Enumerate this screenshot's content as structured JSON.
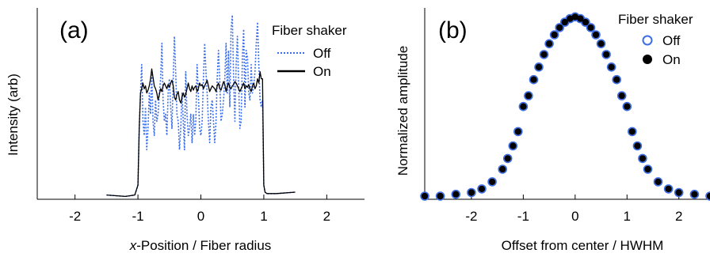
{
  "colors": {
    "off": "#3b6ee8",
    "on": "#000000",
    "axis": "#000000",
    "background": "#ffffff"
  },
  "chart_data": [
    {
      "type": "line",
      "panel_label": "(a)",
      "xlabel_prefix": "x",
      "xlabel_suffix": "-Position / Fiber radius",
      "ylabel": "Intensity (arb)",
      "xlim": [
        -2.6,
        2.6
      ],
      "ylim": [
        0,
        1.35
      ],
      "grid": false,
      "xticks": [
        -2,
        -1,
        0,
        1,
        2
      ],
      "xtick_labels": [
        "-2",
        "-1",
        "0",
        "1",
        "2"
      ],
      "legend": {
        "title": "Fiber shaker",
        "placement": "top-right",
        "entries": [
          "Off",
          "On"
        ]
      },
      "series": [
        {
          "name": "Off",
          "style": "dotted",
          "x": [
            -1.5,
            -1.2,
            -1.05,
            -1.0,
            -0.98,
            -0.96,
            -0.94,
            -0.92,
            -0.9,
            -0.88,
            -0.86,
            -0.84,
            -0.82,
            -0.8,
            -0.78,
            -0.76,
            -0.74,
            -0.72,
            -0.7,
            -0.68,
            -0.66,
            -0.64,
            -0.62,
            -0.6,
            -0.58,
            -0.56,
            -0.54,
            -0.52,
            -0.5,
            -0.48,
            -0.46,
            -0.44,
            -0.42,
            -0.4,
            -0.38,
            -0.36,
            -0.34,
            -0.32,
            -0.3,
            -0.28,
            -0.26,
            -0.24,
            -0.22,
            -0.2,
            -0.18,
            -0.16,
            -0.14,
            -0.12,
            -0.1,
            -0.08,
            -0.06,
            -0.04,
            -0.02,
            0.0,
            0.02,
            0.04,
            0.06,
            0.08,
            0.1,
            0.12,
            0.14,
            0.16,
            0.18,
            0.2,
            0.22,
            0.24,
            0.26,
            0.28,
            0.3,
            0.32,
            0.34,
            0.36,
            0.38,
            0.4,
            0.42,
            0.44,
            0.46,
            0.48,
            0.5,
            0.52,
            0.54,
            0.56,
            0.58,
            0.6,
            0.62,
            0.64,
            0.66,
            0.68,
            0.7,
            0.72,
            0.74,
            0.76,
            0.78,
            0.8,
            0.82,
            0.84,
            0.86,
            0.88,
            0.9,
            0.92,
            0.94,
            0.96,
            0.98,
            1.0,
            1.02,
            1.05,
            1.2,
            1.5
          ],
          "y": [
            0.03,
            0.02,
            0.03,
            0.1,
            0.5,
            0.75,
            0.95,
            0.55,
            0.45,
            0.65,
            0.35,
            0.5,
            0.75,
            0.6,
            0.9,
            0.55,
            0.45,
            0.7,
            0.55,
            0.6,
            0.75,
            0.85,
            1.1,
            0.7,
            0.55,
            0.6,
            0.45,
            0.75,
            0.85,
            0.65,
            0.5,
            0.85,
            1.15,
            0.9,
            0.6,
            0.55,
            0.35,
            0.5,
            0.75,
            0.55,
            0.35,
            0.9,
            0.6,
            0.45,
            0.5,
            0.6,
            0.4,
            0.6,
            0.45,
            0.55,
            0.95,
            0.75,
            0.5,
            0.45,
            0.55,
            0.85,
            1.1,
            0.9,
            0.75,
            0.55,
            0.4,
            0.65,
            0.7,
            0.55,
            0.4,
            0.55,
            0.85,
            1.05,
            0.85,
            0.55,
            0.6,
            0.7,
            0.85,
            1.1,
            0.75,
            1.05,
            0.65,
            1.2,
            1.3,
            0.85,
            0.55,
            0.95,
            1.15,
            0.8,
            0.5,
            0.55,
            1.0,
            1.2,
            0.65,
            1.05,
            1.0,
            0.75,
            0.7,
            0.95,
            0.75,
            0.8,
            0.9,
            1.1,
            1.25,
            0.95,
            0.7,
            0.65,
            0.7,
            0.1,
            0.05,
            0.04,
            0.04,
            0.05
          ]
        },
        {
          "name": "On",
          "style": "solid",
          "x": [
            -1.5,
            -1.2,
            -1.05,
            -1.0,
            -0.98,
            -0.96,
            -0.94,
            -0.92,
            -0.9,
            -0.88,
            -0.86,
            -0.84,
            -0.82,
            -0.8,
            -0.78,
            -0.76,
            -0.74,
            -0.72,
            -0.7,
            -0.68,
            -0.66,
            -0.64,
            -0.62,
            -0.6,
            -0.58,
            -0.56,
            -0.54,
            -0.52,
            -0.5,
            -0.48,
            -0.46,
            -0.44,
            -0.42,
            -0.4,
            -0.38,
            -0.36,
            -0.34,
            -0.32,
            -0.3,
            -0.28,
            -0.26,
            -0.24,
            -0.22,
            -0.2,
            -0.18,
            -0.16,
            -0.14,
            -0.12,
            -0.1,
            -0.08,
            -0.06,
            -0.04,
            -0.02,
            0.0,
            0.02,
            0.04,
            0.06,
            0.08,
            0.1,
            0.12,
            0.14,
            0.16,
            0.18,
            0.2,
            0.22,
            0.24,
            0.26,
            0.28,
            0.3,
            0.32,
            0.34,
            0.36,
            0.38,
            0.4,
            0.42,
            0.44,
            0.46,
            0.48,
            0.5,
            0.52,
            0.54,
            0.56,
            0.58,
            0.6,
            0.62,
            0.64,
            0.66,
            0.68,
            0.7,
            0.72,
            0.74,
            0.76,
            0.78,
            0.8,
            0.82,
            0.84,
            0.86,
            0.88,
            0.9,
            0.92,
            0.94,
            0.96,
            0.98,
            1.0,
            1.02,
            1.05,
            1.2,
            1.5
          ],
          "y": [
            0.03,
            0.02,
            0.03,
            0.1,
            0.5,
            0.75,
            0.78,
            0.82,
            0.78,
            0.8,
            0.75,
            0.77,
            0.8,
            0.85,
            0.92,
            0.86,
            0.8,
            0.78,
            0.75,
            0.7,
            0.74,
            0.78,
            0.76,
            0.8,
            0.82,
            0.8,
            0.78,
            0.81,
            0.79,
            0.82,
            0.84,
            0.8,
            0.72,
            0.7,
            0.74,
            0.76,
            0.7,
            0.68,
            0.72,
            0.75,
            0.72,
            0.74,
            0.78,
            0.82,
            0.78,
            0.76,
            0.8,
            0.77,
            0.79,
            0.8,
            0.76,
            0.78,
            0.82,
            0.8,
            0.81,
            0.78,
            0.8,
            0.82,
            0.84,
            0.8,
            0.76,
            0.78,
            0.8,
            0.79,
            0.78,
            0.76,
            0.8,
            0.82,
            0.78,
            0.77,
            0.8,
            0.83,
            0.81,
            0.76,
            0.8,
            0.82,
            0.79,
            0.78,
            0.8,
            0.81,
            0.83,
            0.82,
            0.8,
            0.78,
            0.76,
            0.78,
            0.8,
            0.82,
            0.78,
            0.8,
            0.79,
            0.81,
            0.78,
            0.76,
            0.8,
            0.82,
            0.78,
            0.8,
            0.85,
            0.82,
            0.9,
            0.85,
            0.85,
            0.1,
            0.05,
            0.04,
            0.04,
            0.05
          ]
        }
      ]
    },
    {
      "type": "scatter",
      "panel_label": "(b)",
      "xlabel": "Offset from center / HWHM",
      "ylabel": "Normalized amplitude",
      "xlim": [
        -2.9,
        2.6
      ],
      "ylim": [
        0,
        1.05
      ],
      "grid": false,
      "xticks": [
        -2,
        -1,
        0,
        1,
        2
      ],
      "xtick_labels": [
        "-2",
        "-1",
        "0",
        "1",
        "2"
      ],
      "legend": {
        "title": "Fiber shaker",
        "placement": "top-right",
        "entries": [
          "Off",
          "On"
        ]
      },
      "series": [
        {
          "name": "Off",
          "marker": "open-circle",
          "x": [
            -2.9,
            -2.6,
            -2.3,
            -2.0,
            -1.8,
            -1.6,
            -1.4,
            -1.3,
            -1.2,
            -1.1,
            -1.0,
            -0.9,
            -0.8,
            -0.7,
            -0.6,
            -0.5,
            -0.4,
            -0.3,
            -0.2,
            -0.1,
            0.0,
            0.1,
            0.2,
            0.3,
            0.4,
            0.5,
            0.6,
            0.7,
            0.8,
            0.9,
            1.0,
            1.1,
            1.2,
            1.3,
            1.4,
            1.6,
            1.8,
            2.0,
            2.3,
            2.6
          ],
          "y": [
            0.0,
            0.0,
            0.01,
            0.02,
            0.04,
            0.08,
            0.15,
            0.21,
            0.28,
            0.36,
            0.5,
            0.56,
            0.65,
            0.72,
            0.79,
            0.85,
            0.9,
            0.94,
            0.97,
            0.99,
            1.0,
            0.99,
            0.97,
            0.94,
            0.9,
            0.85,
            0.79,
            0.72,
            0.65,
            0.56,
            0.5,
            0.36,
            0.28,
            0.21,
            0.15,
            0.08,
            0.04,
            0.02,
            0.01,
            0.0
          ]
        },
        {
          "name": "On",
          "marker": "filled-circle",
          "x": [
            -2.9,
            -2.6,
            -2.3,
            -2.0,
            -1.8,
            -1.6,
            -1.4,
            -1.3,
            -1.2,
            -1.1,
            -1.0,
            -0.9,
            -0.8,
            -0.7,
            -0.6,
            -0.5,
            -0.4,
            -0.3,
            -0.2,
            -0.1,
            0.0,
            0.1,
            0.2,
            0.3,
            0.4,
            0.5,
            0.6,
            0.7,
            0.8,
            0.9,
            1.0,
            1.1,
            1.2,
            1.3,
            1.4,
            1.6,
            1.8,
            2.0,
            2.3,
            2.6
          ],
          "y": [
            0.0,
            0.0,
            0.01,
            0.02,
            0.04,
            0.08,
            0.15,
            0.21,
            0.28,
            0.36,
            0.5,
            0.56,
            0.65,
            0.72,
            0.79,
            0.85,
            0.9,
            0.94,
            0.97,
            0.99,
            1.0,
            0.99,
            0.97,
            0.94,
            0.9,
            0.85,
            0.79,
            0.72,
            0.65,
            0.56,
            0.5,
            0.36,
            0.28,
            0.21,
            0.15,
            0.08,
            0.04,
            0.02,
            0.01,
            0.0
          ]
        }
      ]
    }
  ]
}
